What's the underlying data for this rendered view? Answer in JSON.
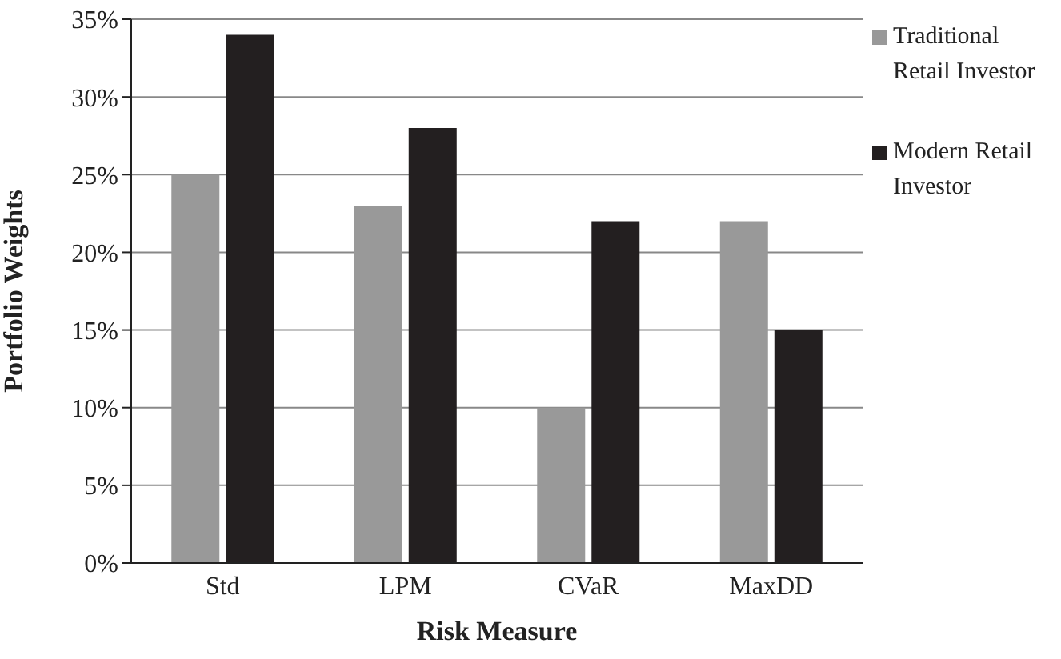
{
  "chart_data": {
    "type": "bar",
    "xlabel": "Risk Measure",
    "ylabel": "Portfolio Weights",
    "categories": [
      "Std",
      "LPM",
      "CVaR",
      "MaxDD"
    ],
    "series": [
      {
        "name": "Traditional Retail Investor",
        "color": "#999999",
        "values": [
          25,
          23,
          10,
          22
        ]
      },
      {
        "name": "Modern Retail Investor",
        "color": "#231f20",
        "values": [
          34,
          28,
          22,
          15
        ]
      }
    ],
    "ylim": [
      0,
      35
    ],
    "yticks": [
      {
        "value": 0,
        "label": "0%"
      },
      {
        "value": 5,
        "label": "5%"
      },
      {
        "value": 10,
        "label": "10%"
      },
      {
        "value": 15,
        "label": "15%"
      },
      {
        "value": 20,
        "label": "20%"
      },
      {
        "value": 25,
        "label": "25%"
      },
      {
        "value": 30,
        "label": "30%"
      },
      {
        "value": 35,
        "label": "35%"
      }
    ],
    "grid": "y",
    "legend": "top right"
  }
}
